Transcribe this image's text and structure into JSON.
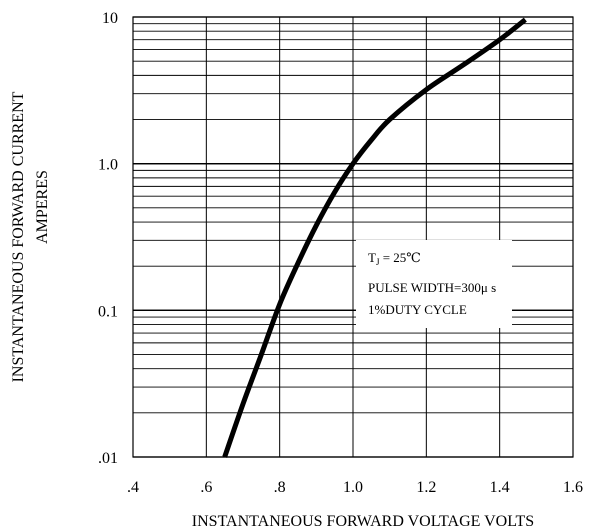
{
  "chart_data": {
    "type": "line",
    "xlabel": "INSTANTANEOUS FORWARD VOLTAGE VOLTS",
    "ylabel_line1": "INSTANTANEOUS FORWARD CURRENT",
    "ylabel_line2": "AMPERES",
    "x_scale": "linear",
    "y_scale": "log",
    "xlim": [
      0.4,
      1.6
    ],
    "ylim": [
      0.01,
      10
    ],
    "x_ticks": [
      {
        "value": 0.4,
        "label": ".4"
      },
      {
        "value": 0.6,
        "label": ".6"
      },
      {
        "value": 0.8,
        "label": ".8"
      },
      {
        "value": 1.0,
        "label": "1.0"
      },
      {
        "value": 1.2,
        "label": "1.2"
      },
      {
        "value": 1.4,
        "label": "1.4"
      },
      {
        "value": 1.6,
        "label": "1.6"
      }
    ],
    "y_ticks": [
      {
        "value": 10,
        "label": "10"
      },
      {
        "value": 1,
        "label": "1.0"
      },
      {
        "value": 0.1,
        "label": "0.1"
      },
      {
        "value": 0.01,
        "label": ".01"
      }
    ],
    "grid": true,
    "annotation": {
      "tj_label": "T",
      "tj_sub": "J",
      "tj_value": " = 25℃",
      "line2": "PULSE WIDTH=300μ s",
      "line3": "1%DUTY CYCLE"
    },
    "series": [
      {
        "x": [
          0.65,
          0.7,
          0.75,
          0.8,
          0.85,
          0.9,
          0.95,
          1.0,
          1.05,
          1.1,
          1.2,
          1.3,
          1.4,
          1.47
        ],
        "values": [
          0.01,
          0.023,
          0.05,
          0.11,
          0.21,
          0.38,
          0.64,
          1.0,
          1.45,
          2.0,
          3.2,
          4.7,
          7.0,
          9.6
        ]
      }
    ]
  }
}
